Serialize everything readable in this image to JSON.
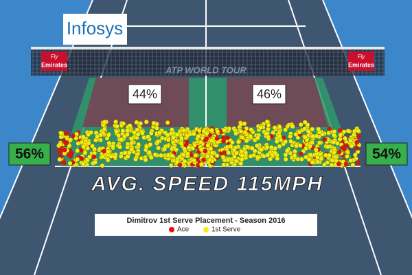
{
  "sponsor": "Infosys",
  "net_signs": {
    "left": {
      "line1": "Fly",
      "line2": "Emirates"
    },
    "right": {
      "line1": "Fly",
      "line2": "Emirates"
    }
  },
  "net_logo": "ATP WORLD TOUR",
  "zones": {
    "deuce_wide": "56%",
    "deuce_t": "44%",
    "ad_t": "46%",
    "ad_wide": "54%"
  },
  "headline": "AVG. SPEED 115MPH",
  "legend": {
    "title": "Dimitrov 1st Serve Placement - Season 2016",
    "items": [
      {
        "label": "Ace",
        "color": "#e01010"
      },
      {
        "label": "1st Serve",
        "color": "#f2ee10"
      }
    ]
  }
}
